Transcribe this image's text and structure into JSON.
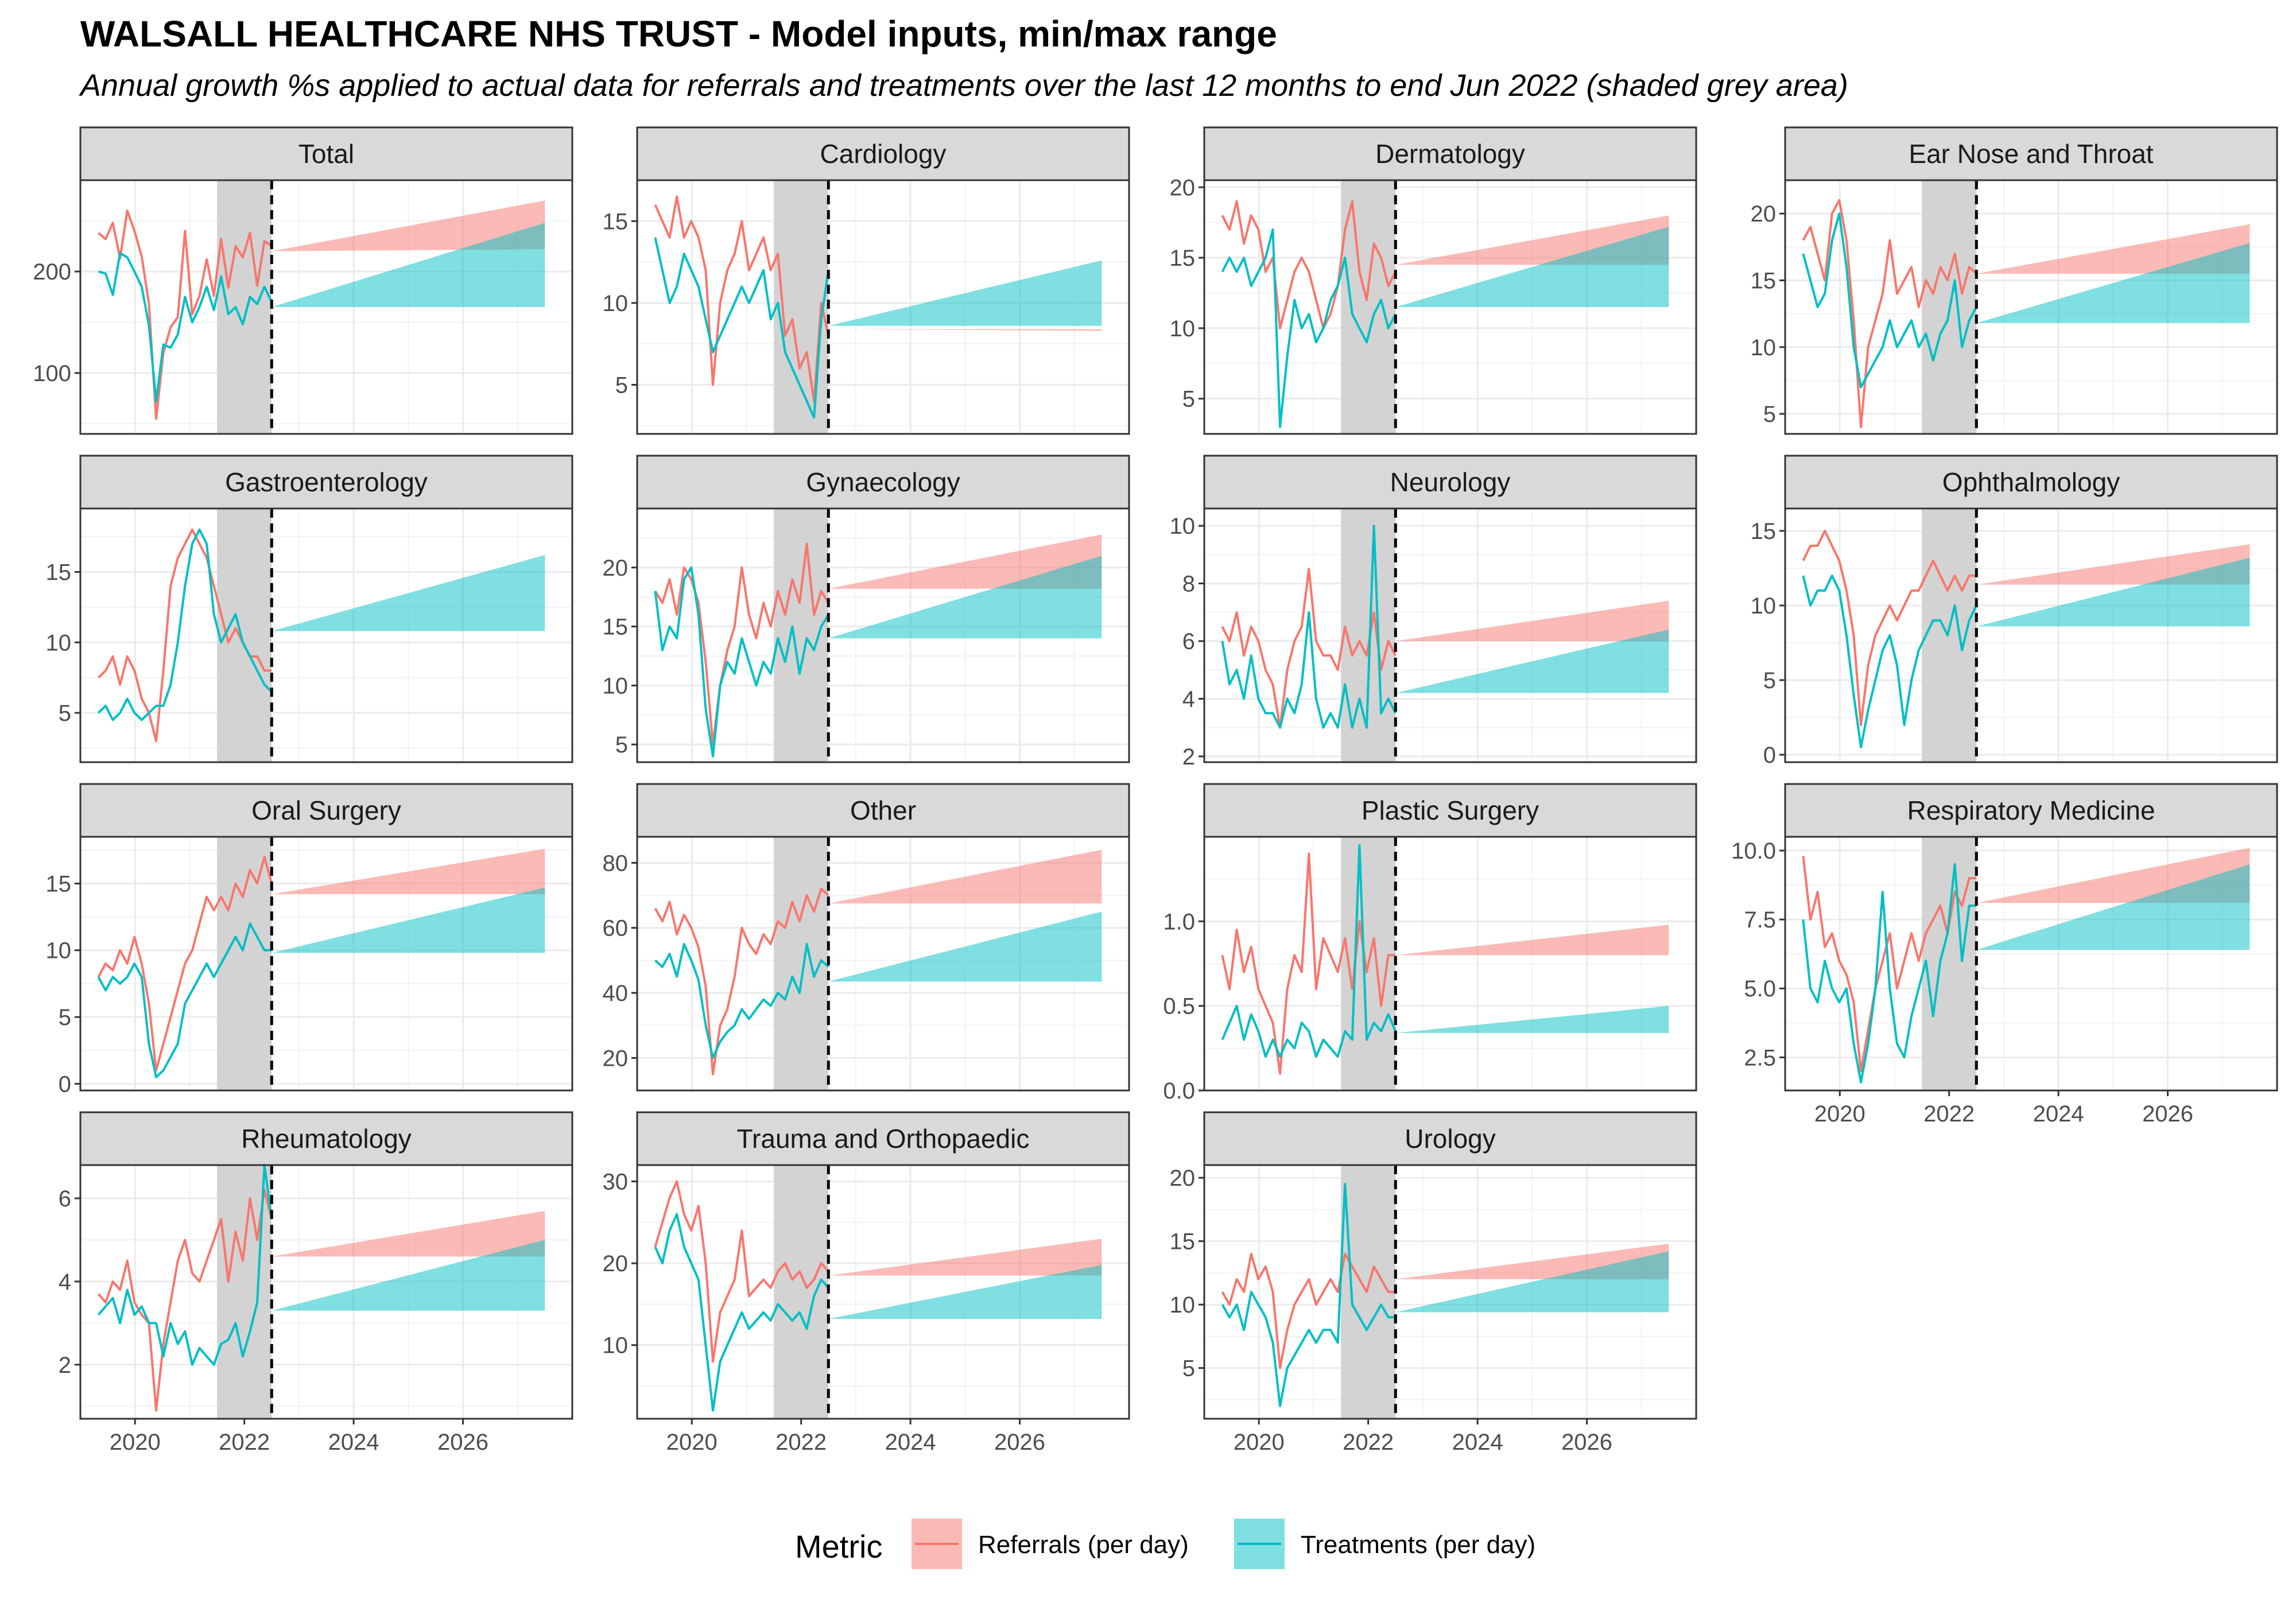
{
  "header": {
    "title": "WALSALL HEALTHCARE NHS TRUST - Model inputs, min/max range",
    "subtitle": "Annual growth %s applied to actual data for referrals and treatments over the last 12 months to end Jun 2022 (shaded grey area)"
  },
  "legend": {
    "title": "Metric",
    "placement": "bottom",
    "items": [
      {
        "label": "Referrals (per day)",
        "color": "#F8766D"
      },
      {
        "label": "Treatments (per day)",
        "color": "#00BFC4"
      }
    ]
  },
  "chart_data": {
    "type": "line",
    "facet_layout": "4x4 grid, free y scales, shared x axis",
    "x_axis": {
      "ticks": [
        "2020",
        "2022",
        "2024",
        "2026"
      ],
      "xlim": [
        2019.0,
        2028.0
      ]
    },
    "shaded_period": [
      2021.5,
      2022.5
    ],
    "forecast_start": 2022.5,
    "forecast_end": 2027.5,
    "series_names": [
      "Referrals (per day)",
      "Treatments (per day)"
    ],
    "colors": {
      "referrals": "#F8766D",
      "treatments": "#00BFC4",
      "shade": "#D3D3D3"
    },
    "facets": [
      {
        "name": "Total",
        "ylim": [
          40,
          290
        ],
        "yticks": [
          100,
          200
        ],
        "ref": [
          238,
          232,
          248,
          213,
          260,
          240,
          215,
          168,
          55,
          120,
          145,
          155,
          240,
          158,
          176,
          212,
          176,
          232,
          184,
          225,
          214,
          238,
          186,
          230,
          225
        ],
        "trt": [
          200,
          198,
          177,
          218,
          214,
          200,
          185,
          147,
          72,
          128,
          125,
          138,
          175,
          150,
          165,
          185,
          162,
          195,
          158,
          165,
          148,
          175,
          168,
          185,
          170
        ],
        "ref_band": [
          220,
          222,
          270
        ],
        "trt_band": [
          165,
          165,
          248
        ]
      },
      {
        "name": "Cardiology",
        "ylim": [
          2,
          17.5
        ],
        "yticks": [
          5,
          10,
          15
        ],
        "ref": [
          16,
          15,
          14,
          16.5,
          14,
          15,
          14,
          12,
          5,
          10,
          12,
          13,
          15,
          12,
          13,
          14,
          12,
          13,
          8,
          9,
          6,
          7,
          4,
          10,
          8
        ],
        "trt": [
          14,
          12,
          10,
          11,
          13,
          12,
          11,
          9,
          7,
          8,
          9,
          10,
          11,
          10,
          11,
          12,
          9,
          10,
          7,
          6,
          5,
          4,
          3,
          9,
          12
        ],
        "ref_band": [
          8.4,
          8.4,
          8.3
        ],
        "trt_band": [
          8.6,
          8.6,
          12.6
        ]
      },
      {
        "name": "Dermatology",
        "ylim": [
          2.5,
          20.5
        ],
        "yticks": [
          5,
          10,
          15,
          20
        ],
        "ref": [
          18,
          17,
          19,
          16,
          18,
          17,
          14,
          15,
          10,
          12,
          14,
          15,
          14,
          12,
          10,
          11,
          13,
          17,
          19,
          14,
          12,
          16,
          15,
          13,
          14
        ],
        "trt": [
          14,
          15,
          14,
          15,
          13,
          14,
          15,
          17,
          3,
          8,
          12,
          10,
          11,
          9,
          10,
          12,
          13,
          15,
          11,
          10,
          9,
          11,
          12,
          10,
          11
        ],
        "ref_band": [
          14.5,
          14.5,
          18
        ],
        "trt_band": [
          11.5,
          11.5,
          17.2
        ]
      },
      {
        "name": "Ear Nose and Throat",
        "ylim": [
          3.5,
          22.5
        ],
        "yticks": [
          5,
          10,
          15,
          20
        ],
        "ref": [
          18,
          19,
          17,
          15,
          20,
          21,
          18,
          12,
          4,
          10,
          12,
          14,
          18,
          14,
          15,
          16,
          13,
          15,
          14,
          16,
          15,
          17,
          14,
          16,
          15.5
        ],
        "trt": [
          17,
          15,
          13,
          14,
          18,
          20,
          16,
          10,
          7,
          8,
          9,
          10,
          12,
          10,
          11,
          12,
          10,
          11,
          9,
          11,
          12,
          15,
          10,
          12,
          13
        ],
        "ref_band": [
          15.5,
          15.5,
          19.2
        ],
        "trt_band": [
          11.8,
          11.8,
          17.8
        ]
      },
      {
        "name": "Gastroenterology",
        "ylim": [
          1.5,
          19.5
        ],
        "yticks": [
          5,
          10,
          15
        ],
        "ref": [
          7.5,
          8,
          9,
          7,
          9,
          8,
          6,
          5,
          3,
          8,
          14,
          16,
          17,
          18,
          17,
          16,
          14,
          12,
          10,
          11,
          10,
          9,
          9,
          8,
          8
        ],
        "trt": [
          5,
          5.5,
          4.5,
          5,
          6,
          5,
          4.5,
          5,
          5.5,
          5.5,
          7,
          10,
          14,
          17,
          18,
          17,
          12,
          10,
          11,
          12,
          10,
          9,
          8,
          7,
          6.5
        ],
        "ref_band": [
          10.5,
          10.5,
          10.5
        ],
        "trt_band": [
          10.8,
          10.8,
          16.2
        ]
      },
      {
        "name": "Gynaecology",
        "ylim": [
          3.5,
          25
        ],
        "yticks": [
          5,
          10,
          15,
          20
        ],
        "ref": [
          18,
          17,
          19,
          16,
          20,
          19,
          17,
          12,
          5,
          10,
          13,
          15,
          20,
          16,
          14,
          17,
          15,
          18,
          16,
          19,
          17,
          22,
          16,
          18,
          17
        ],
        "trt": [
          18,
          13,
          15,
          14,
          19,
          20,
          16,
          8,
          4,
          10,
          12,
          11,
          14,
          12,
          10,
          12,
          11,
          14,
          12,
          15,
          11,
          14,
          13,
          15,
          16
        ],
        "ref_band": [
          18.2,
          18.2,
          22.8
        ],
        "trt_band": [
          14,
          14,
          21
        ]
      },
      {
        "name": "Neurology",
        "ylim": [
          1.8,
          10.6
        ],
        "yticks": [
          2,
          4,
          6,
          8,
          10
        ],
        "ref": [
          6.5,
          6,
          7,
          5.5,
          6.5,
          6,
          5,
          4.5,
          3,
          5,
          6,
          6.5,
          8.5,
          6,
          5.5,
          5.5,
          5,
          6.5,
          5.5,
          6,
          5.5,
          7,
          5,
          6,
          5.5
        ],
        "trt": [
          6,
          4.5,
          5,
          4,
          5.5,
          4,
          3.5,
          3.5,
          3,
          4,
          3.5,
          4.5,
          7,
          4,
          3,
          3.5,
          3,
          4.5,
          3,
          4,
          3,
          10,
          3.5,
          4,
          3.5
        ],
        "ref_band": [
          6,
          6,
          7.4
        ],
        "trt_band": [
          4.2,
          4.2,
          6.4
        ]
      },
      {
        "name": "Ophthalmology",
        "ylim": [
          -0.5,
          16.5
        ],
        "yticks": [
          0,
          5,
          10,
          15
        ],
        "ref": [
          13,
          14,
          14,
          15,
          14,
          13,
          11,
          8,
          2,
          6,
          8,
          9,
          10,
          9,
          10,
          11,
          11,
          12,
          13,
          12,
          11,
          12,
          11,
          12,
          12
        ],
        "trt": [
          12,
          10,
          11,
          11,
          12,
          11,
          8,
          4,
          0.5,
          3,
          5,
          7,
          8,
          6,
          2,
          5,
          7,
          8,
          9,
          9,
          8,
          10,
          7,
          9,
          10
        ],
        "ref_band": [
          11.4,
          11.4,
          14.1
        ],
        "trt_band": [
          8.6,
          8.6,
          13.2
        ]
      },
      {
        "name": "Oral Surgery",
        "ylim": [
          -0.5,
          18.5
        ],
        "yticks": [
          0,
          5,
          10,
          15
        ],
        "ref": [
          8,
          9,
          8.5,
          10,
          9,
          11,
          9,
          6,
          1,
          3,
          5,
          7,
          9,
          10,
          12,
          14,
          13,
          14,
          13,
          15,
          14,
          16,
          15,
          17,
          15
        ],
        "trt": [
          8,
          7,
          8,
          7.5,
          8,
          9,
          8,
          3,
          0.5,
          1,
          2,
          3,
          6,
          7,
          8,
          9,
          8,
          9,
          10,
          11,
          10,
          12,
          11,
          10,
          10
        ],
        "ref_band": [
          14.2,
          14.2,
          17.6
        ],
        "trt_band": [
          9.8,
          9.8,
          14.7
        ]
      },
      {
        "name": "Other",
        "ylim": [
          10,
          88
        ],
        "yticks": [
          20,
          40,
          60,
          80
        ],
        "ref": [
          66,
          62,
          68,
          58,
          64,
          60,
          54,
          42,
          15,
          30,
          35,
          45,
          60,
          55,
          52,
          58,
          55,
          62,
          60,
          68,
          62,
          70,
          65,
          72,
          70
        ],
        "trt": [
          50,
          48,
          52,
          45,
          55,
          50,
          44,
          30,
          20,
          25,
          28,
          30,
          35,
          32,
          35,
          38,
          36,
          40,
          38,
          45,
          40,
          55,
          45,
          50,
          48
        ],
        "ref_band": [
          67.5,
          67.5,
          84
        ],
        "trt_band": [
          43.5,
          43.5,
          65
        ]
      },
      {
        "name": "Plastic Surgery",
        "ylim": [
          0,
          1.5
        ],
        "yticks": [
          0.0,
          0.5,
          1.0
        ],
        "ref": [
          0.8,
          0.6,
          0.95,
          0.7,
          0.85,
          0.6,
          0.5,
          0.4,
          0.1,
          0.6,
          0.8,
          0.7,
          1.4,
          0.6,
          0.9,
          0.8,
          0.7,
          0.9,
          0.6,
          1.0,
          0.7,
          0.9,
          0.5,
          0.8,
          0.8
        ],
        "trt": [
          0.3,
          0.4,
          0.5,
          0.3,
          0.45,
          0.35,
          0.2,
          0.3,
          0.2,
          0.3,
          0.25,
          0.4,
          0.35,
          0.2,
          0.3,
          0.25,
          0.2,
          0.35,
          0.3,
          1.45,
          0.3,
          0.4,
          0.35,
          0.45,
          0.35
        ],
        "ref_band": [
          0.8,
          0.8,
          0.98
        ],
        "trt_band": [
          0.34,
          0.34,
          0.5
        ]
      },
      {
        "name": "Respiratory Medicine",
        "ylim": [
          1.3,
          10.5
        ],
        "yticks": [
          2.5,
          5.0,
          7.5,
          10.0
        ],
        "ref": [
          9.8,
          7.5,
          8.5,
          6.5,
          7,
          6,
          5.5,
          4.5,
          2,
          3.5,
          5,
          6,
          7,
          5,
          6,
          7,
          6,
          7,
          7.5,
          8,
          7,
          8.5,
          8,
          9,
          9
        ],
        "trt": [
          7.5,
          5,
          4.5,
          6,
          5,
          4.5,
          5,
          3,
          1.6,
          3,
          5,
          8.5,
          5,
          3,
          2.5,
          4,
          5,
          6,
          4,
          6,
          7,
          9.5,
          6,
          8,
          8
        ],
        "ref_band": [
          8.1,
          8.1,
          10.1
        ],
        "trt_band": [
          6.4,
          6.4,
          9.5
        ]
      },
      {
        "name": "Rheumatology",
        "ylim": [
          0.7,
          6.8
        ],
        "yticks": [
          2,
          4,
          6
        ],
        "ref": [
          3.7,
          3.5,
          4,
          3.8,
          4.5,
          3.5,
          3.2,
          3,
          0.9,
          2.5,
          3.5,
          4.5,
          5,
          4.2,
          4,
          4.5,
          5,
          5.5,
          4,
          5.2,
          4.5,
          6,
          5,
          6.2,
          5.5
        ],
        "trt": [
          3.2,
          3.4,
          3.6,
          3,
          3.8,
          3.2,
          3.4,
          3,
          3,
          2.2,
          3,
          2.5,
          2.8,
          2,
          2.4,
          2.2,
          2,
          2.5,
          2.6,
          3,
          2.2,
          2.8,
          3.5,
          6.8,
          5.5
        ],
        "ref_band": [
          4.6,
          4.6,
          5.7
        ],
        "trt_band": [
          3.3,
          3.3,
          5
        ]
      },
      {
        "name": "Trauma and Orthopaedic",
        "ylim": [
          1,
          32
        ],
        "yticks": [
          10,
          20,
          30
        ],
        "ref": [
          22,
          25,
          28,
          30,
          26,
          24,
          27,
          20,
          8,
          14,
          16,
          18,
          24,
          16,
          17,
          18,
          17,
          19,
          20,
          18,
          19,
          17,
          18,
          20,
          19
        ],
        "trt": [
          22,
          20,
          24,
          26,
          22,
          20,
          18,
          10,
          2,
          8,
          10,
          12,
          14,
          12,
          13,
          14,
          13,
          15,
          14,
          13,
          14,
          12,
          16,
          18,
          17
        ],
        "ref_band": [
          18.5,
          18.5,
          23
        ],
        "trt_band": [
          13.2,
          13.2,
          19.8
        ]
      },
      {
        "name": "Urology",
        "ylim": [
          1,
          21
        ],
        "yticks": [
          5,
          10,
          15,
          20
        ],
        "ref": [
          11,
          10,
          12,
          11,
          14,
          12,
          13,
          11,
          5,
          8,
          10,
          11,
          12,
          10,
          11,
          12,
          11,
          14,
          13,
          12,
          11,
          13,
          12,
          11,
          11
        ],
        "trt": [
          10,
          9,
          10,
          8,
          11,
          10,
          9,
          7,
          2,
          5,
          6,
          7,
          8,
          7,
          8,
          8,
          7,
          19.5,
          10,
          9,
          8,
          9,
          10,
          9,
          9
        ],
        "ref_band": [
          12,
          12,
          14.8
        ],
        "trt_band": [
          9.4,
          9.4,
          14.2
        ]
      }
    ]
  }
}
